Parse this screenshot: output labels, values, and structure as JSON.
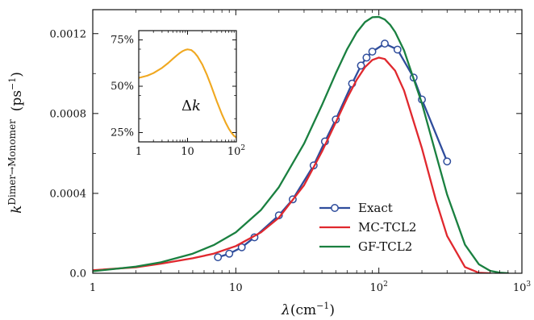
{
  "colors": {
    "exact": "#2f4d9c",
    "mc_tcl2": "#e0282e",
    "gf_tcl2": "#1a8040",
    "inset_line": "#f0a820",
    "axis": "#111111"
  },
  "chart_data": [
    {
      "type": "line",
      "xlabel_symbol": "λ",
      "xlabel_unit": "(cm",
      "xlabel_exp": "−1",
      "xlabel_close": ")",
      "ylabel_base": "k",
      "ylabel_super": "Dimer→Monomer",
      "ylabel_unit": "(ps",
      "ylabel_exp": "−1",
      "ylabel_close": ")",
      "xscale": "log",
      "xlim": [
        1,
        1000
      ],
      "ylim": [
        0,
        0.00132
      ],
      "x_ticks": [
        {
          "value": 1,
          "label": "1"
        },
        {
          "value": 10,
          "label": "10"
        },
        {
          "value": 100,
          "label": "10",
          "exp": "2"
        },
        {
          "value": 1000,
          "label": "10",
          "exp": "3"
        }
      ],
      "y_ticks": [
        {
          "value": 0,
          "label": "0.0"
        },
        {
          "value": 0.0004,
          "label": "0.0004"
        },
        {
          "value": 0.0008,
          "label": "0.0008"
        },
        {
          "value": 0.0012,
          "label": "0.0012"
        }
      ],
      "legend_position": "center-right",
      "grid": false,
      "series": [
        {
          "name": "Exact",
          "key": "exact",
          "markers": "open-circle",
          "x": [
            7.5,
            9,
            11,
            13.5,
            20,
            25,
            35,
            42,
            50,
            65,
            75,
            82,
            90,
            110,
            135,
            175,
            200,
            300
          ],
          "y": [
            8e-05,
            9.8e-05,
            0.00013,
            0.00018,
            0.00029,
            0.00037,
            0.00054,
            0.00066,
            0.00077,
            0.00095,
            0.00104,
            0.00108,
            0.00111,
            0.00115,
            0.00112,
            0.00098,
            0.00087,
            0.00056
          ]
        },
        {
          "name": "MC-TCL2",
          "key": "mc_tcl2",
          "markers": "none",
          "x": [
            1,
            2,
            3,
            5,
            7,
            10,
            15,
            20,
            30,
            40,
            50,
            60,
            70,
            80,
            90,
            100,
            110,
            130,
            150,
            200,
            250,
            300,
            400,
            500,
            600
          ],
          "y": [
            1.5e-05,
            3e-05,
            4.8e-05,
            7.5e-05,
            9.8e-05,
            0.000136,
            0.000205,
            0.000278,
            0.000441,
            0.000609,
            0.000756,
            0.000877,
            0.000969,
            0.001032,
            0.001068,
            0.00108,
            0.001073,
            0.001014,
            0.000915,
            0.000626,
            0.000368,
            0.000187,
            3.1e-05,
            2.5e-06,
            1e-07
          ]
        },
        {
          "name": "GF-TCL2",
          "key": "gf_tcl2",
          "markers": "none",
          "x": [
            1,
            2,
            3,
            5,
            7,
            10,
            15,
            20,
            30,
            40,
            50,
            60,
            70,
            80,
            90,
            100,
            110,
            120,
            130,
            150,
            200,
            250,
            300,
            400,
            500,
            600,
            700,
            800
          ],
          "y": [
            1e-05,
            3.3e-05,
            5.5e-05,
            9.8e-05,
            0.000141,
            0.000205,
            0.000317,
            0.000431,
            0.000649,
            0.000842,
            0.001001,
            0.001122,
            0.001206,
            0.001258,
            0.001282,
            0.001284,
            0.001271,
            0.001244,
            0.001208,
            0.001116,
            0.000851,
            0.000599,
            0.000394,
            0.000143,
            4.5e-05,
            1.2e-05,
            2.8e-06,
            6e-07
          ]
        }
      ]
    },
    {
      "type": "line",
      "annotation_base": "Δ",
      "annotation_var": "k",
      "xscale": "log",
      "xlim": [
        1,
        100
      ],
      "ylim": [
        0.2,
        0.8
      ],
      "x_ticks": [
        {
          "value": 1,
          "label": "1"
        },
        {
          "value": 10,
          "label": "10"
        },
        {
          "value": 100,
          "label": "10",
          "exp": "2"
        }
      ],
      "y_ticks": [
        {
          "value": 0.25,
          "label": "25%"
        },
        {
          "value": 0.5,
          "label": "50%"
        },
        {
          "value": 0.75,
          "label": "75%"
        }
      ],
      "series": [
        {
          "key": "inset_line",
          "x": [
            1,
            1.5,
            2,
            3,
            4,
            5,
            6,
            7,
            8,
            9,
            10,
            12,
            14,
            16,
            20,
            25,
            30,
            40,
            50,
            60,
            70,
            80,
            90,
            100
          ],
          "y": [
            0.545,
            0.557,
            0.571,
            0.599,
            0.625,
            0.648,
            0.666,
            0.68,
            0.69,
            0.696,
            0.699,
            0.695,
            0.68,
            0.661,
            0.618,
            0.561,
            0.507,
            0.417,
            0.352,
            0.305,
            0.271,
            0.248,
            0.232,
            0.224
          ]
        }
      ]
    }
  ]
}
